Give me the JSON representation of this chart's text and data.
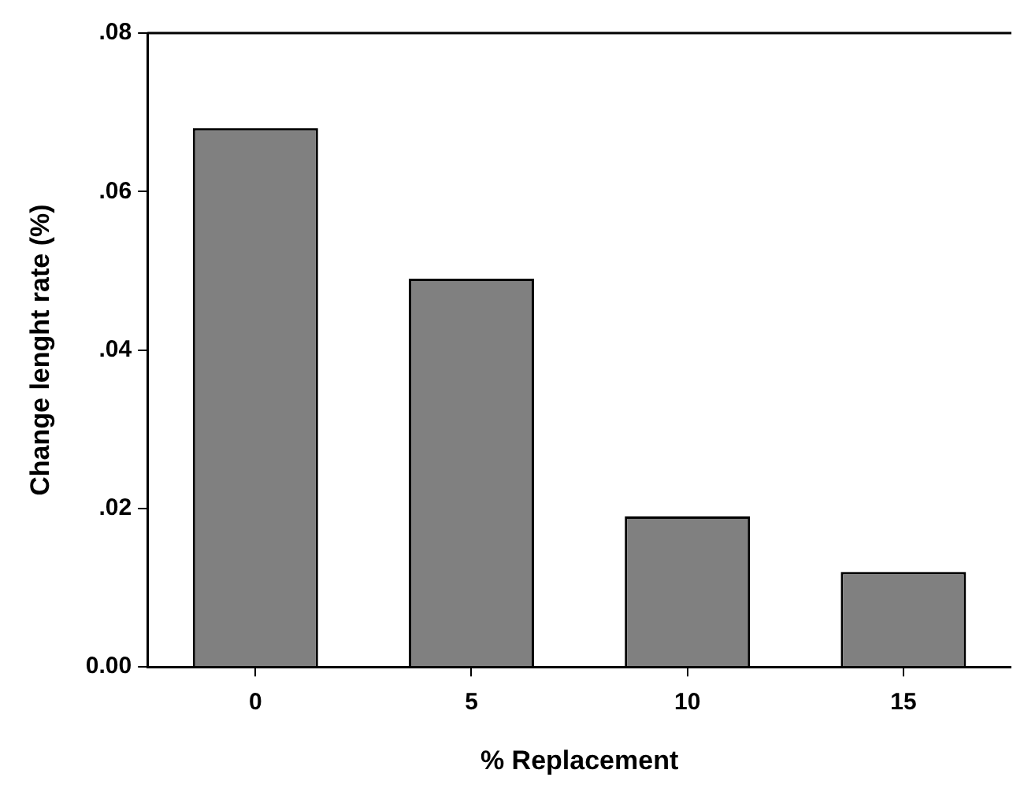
{
  "chart_data": {
    "type": "bar",
    "xlabel": "% Replacement",
    "ylabel": "Change lenght rate (%)",
    "categories": [
      "0",
      "5",
      "10",
      "15"
    ],
    "values": [
      0.068,
      0.049,
      0.019,
      0.012
    ],
    "color": "#808080",
    "ylim": [
      0,
      0.08
    ],
    "yticks": [
      {
        "value": 0,
        "label": "0.00"
      },
      {
        "value": 0.02,
        "label": ".02"
      },
      {
        "value": 0.04,
        "label": ".04"
      },
      {
        "value": 0.06,
        "label": ".06"
      },
      {
        "value": 0.08,
        "label": ".08"
      }
    ],
    "grid": false,
    "legend": false
  }
}
